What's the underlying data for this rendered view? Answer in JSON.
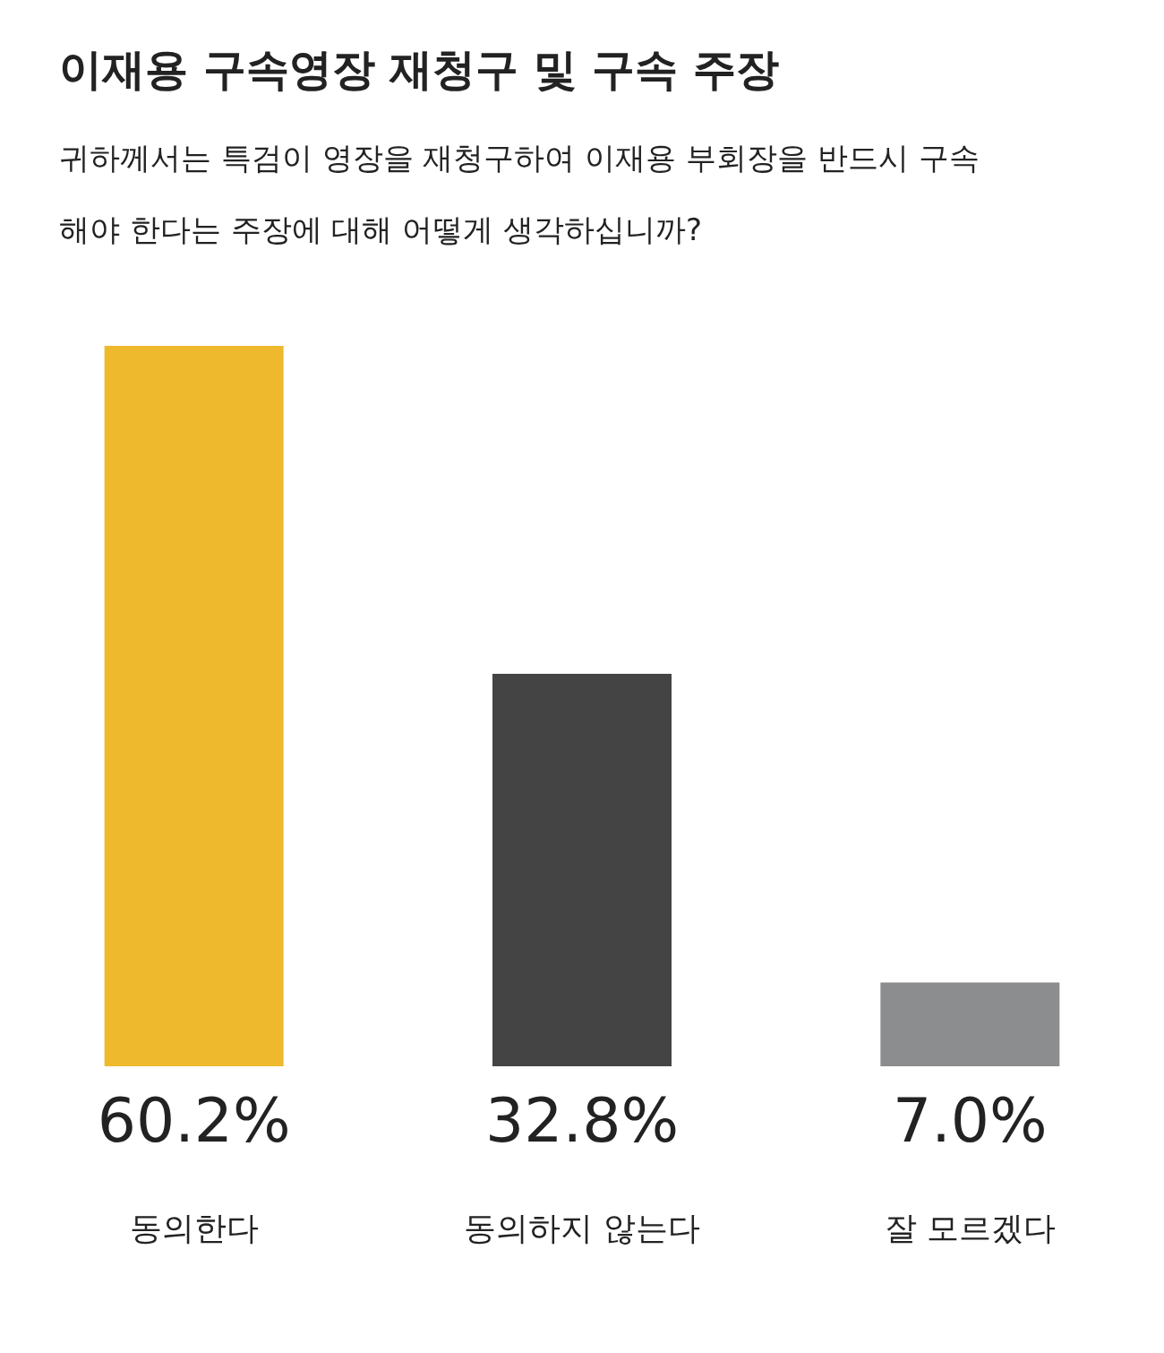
{
  "chart_data": {
    "type": "bar",
    "title": "이재용 구속영장 재청구 및 구속 주장",
    "subtitle": "귀하께서는 특검이 영장을 재청구하여 이재용 부회장을 반드시 구속해야 한다는 주장에 대해 어떻게 생각하십니까?",
    "categories": [
      "동의한다",
      "동의하지 않는다",
      "잘 모르겠다"
    ],
    "values": [
      60.2,
      32.8,
      7.0
    ],
    "colors": [
      "#eeb92c",
      "#444444",
      "#8c8d8f"
    ],
    "value_labels": [
      "60.2%",
      "32.8%",
      "7.0%"
    ],
    "grid": false
  }
}
